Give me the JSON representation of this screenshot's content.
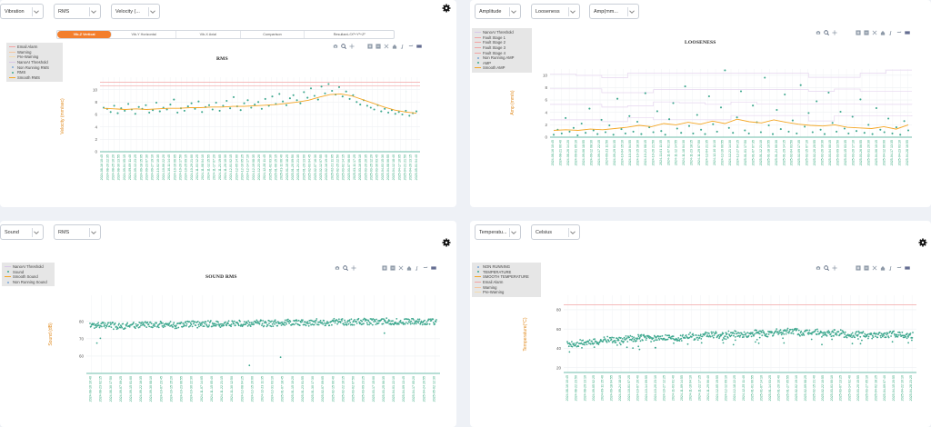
{
  "colors": {
    "accent": "#f37e2c",
    "teal": "#3fa88f",
    "orange_line": "#f5a623",
    "alarm_red": "#f2a3a3",
    "tick_green": "#39a97f"
  },
  "panels": [
    {
      "id": "vibration",
      "selects": [
        "Vibration",
        "RMS",
        "Velocity (..."
      ],
      "tabs": [
        {
          "label": "Vib-Z Vertical",
          "active": true
        },
        {
          "label": "Vib-Y Horizontal",
          "active": false
        },
        {
          "label": "Vib-X Axial",
          "active": false
        },
        {
          "label": "Comparison",
          "active": false
        },
        {
          "label": "Resultant-√X²+Y²+Z²",
          "active": false
        }
      ],
      "legend": [
        {
          "label": "Email Alarm",
          "marker": "line",
          "color": "#f2a3a3"
        },
        {
          "label": "Warning",
          "marker": "line",
          "color": "#f6c7a0"
        },
        {
          "label": "Pre-Warning",
          "marker": "line",
          "color": "#f4dcb0"
        },
        {
          "label": "NanoAI Threshold",
          "marker": "line",
          "color": "#d8c8e8"
        },
        {
          "label": "Non Running RMS",
          "marker": "dot",
          "color": "#7aa7d8"
        },
        {
          "label": "RMS",
          "marker": "dot",
          "color": "#3fa88f"
        },
        {
          "label": "Smooth RMS",
          "marker": "line",
          "color": "#f5a623"
        }
      ],
      "chart_data": {
        "type": "scatter",
        "title": "RMS",
        "ylabel": "Velocity (mm/sec)",
        "ylim": [
          0,
          12
        ],
        "yticks": [
          0,
          2,
          4,
          6,
          8,
          10
        ],
        "xticks": [
          "2024-08-16 10:45",
          "2024-08-20 22:35",
          "2024-08-25 10:20",
          "2024-08-30 13:55",
          "2024-09-04 05:15",
          "2024-09-09 11:40",
          "2024-09-13 23:25",
          "2024-09-18 15:05",
          "2024-09-23 07:30",
          "2024-09-27 19:10",
          "2024-10-02 10:35",
          "2024-10-06 22:20",
          "2024-10-11 14:45",
          "2024-10-16 06:05",
          "2024-10-20 17:50",
          "2024-10-25 09:15",
          "2024-10-29 21:00",
          "2024-11-03 12:25",
          "2024-11-08 04:10",
          "2024-11-12 15:55",
          "2024-11-17 07:20",
          "2024-11-21 19:05",
          "2024-11-26 10:30",
          "2024-12-01 02:15",
          "2024-12-05 14:00",
          "2024-12-10 05:25",
          "2024-12-14 17:10",
          "2024-12-19 08:35",
          "2024-12-23 20:20",
          "2024-12-28 11:45",
          "2025-01-02 03:30",
          "2025-01-06 15:15",
          "2025-01-11 06:40",
          "2025-01-15 18:25",
          "2025-01-20 09:50",
          "2025-01-24 21:35",
          "2025-01-29 13:00",
          "2025-02-03 04:45",
          "2025-02-07 16:30",
          "2025-02-12 07:55",
          "2025-02-16 19:40",
          "2025-02-21 11:05",
          "2025-02-25 22:50",
          "2025-03-02 14:15",
          "2025-03-07 06:00",
          "2025-03-11 17:25",
          "2025-03-16 09:10",
          "2025-03-20 20:35",
          "2025-03-25 12:20",
          "2025-03-30 03:45",
          "2025-04-03 15:30",
          "2025-04-08 06:55",
          "2025-04-12 18:40",
          "2025-04-17 10:05",
          "2025-04-21 21:50",
          "2025-04-26 13:15",
          "2025-05-01 04:40"
        ],
        "thresholds": [
          {
            "name": "Email Alarm",
            "value": 11.2
          },
          {
            "name": "Warning",
            "value": 10.6
          }
        ],
        "series": [
          {
            "name": "RMS",
            "kind": "scatter",
            "y": [
              7.1,
              6.9,
              6.4,
              7.4,
              6.2,
              7.0,
              6.6,
              7.7,
              6.8,
              6.1,
              7.2,
              6.9,
              7.5,
              6.3,
              6.7,
              7.9,
              6.5,
              7.1,
              6.8,
              7.6,
              8.4,
              6.3,
              7.0,
              6.6,
              7.3,
              7.8,
              6.9,
              8.1,
              6.4,
              7.2,
              7.5,
              6.8,
              7.9,
              6.6,
              7.4,
              8.2,
              7.0,
              8.8,
              7.3,
              6.7,
              7.8,
              8.3,
              7.1,
              7.6,
              8.0,
              6.9,
              8.5,
              7.4,
              8.9,
              7.7,
              9.3,
              8.1,
              7.5,
              8.6,
              9.1,
              8.3,
              7.8,
              9.6,
              8.7,
              10.2,
              9.0,
              8.4,
              10.5,
              9.4,
              10.9,
              9.8,
              9.2,
              10.4,
              8.9,
              9.7,
              8.5,
              9.1,
              8.0,
              7.6,
              8.3,
              7.4,
              7.1,
              6.8,
              7.5,
              6.5,
              6.9,
              6.3,
              6.7,
              6.1,
              6.4,
              6.0,
              6.6,
              5.8,
              6.2,
              6.5
            ]
          },
          {
            "name": "Smooth RMS",
            "kind": "line",
            "y": [
              7.0,
              6.9,
              6.8,
              6.9,
              6.8,
              6.9,
              7.0,
              7.0,
              7.1,
              7.1,
              7.2,
              7.2,
              7.3,
              7.3,
              7.4,
              7.5,
              7.6,
              7.8,
              8.0,
              8.3,
              8.8,
              9.2,
              9.3,
              9.0,
              8.4,
              7.8,
              7.2,
              6.7,
              6.4,
              6.2
            ]
          }
        ]
      }
    },
    {
      "id": "looseness",
      "selects": [
        "Amplitude",
        "Looseness",
        "Amp(mm..."
      ],
      "legend": [
        {
          "label": "NanoAI Threshold",
          "marker": "line",
          "color": "#d8c8e8"
        },
        {
          "label": "Fault Stage 1",
          "marker": "line",
          "color": "#f2a3a3"
        },
        {
          "label": "Fault Stage 2",
          "marker": "line",
          "color": "#f2a3a3"
        },
        {
          "label": "Fault Stage 3",
          "marker": "line",
          "color": "#f2a3a3"
        },
        {
          "label": "Fault Stage 4",
          "marker": "line",
          "color": "#f2a3a3"
        },
        {
          "label": "Non Running AMP",
          "marker": "dot",
          "color": "#7aa7d8"
        },
        {
          "label": "AMP",
          "marker": "dot",
          "color": "#3fa88f"
        },
        {
          "label": "Smooth AMP",
          "marker": "line",
          "color": "#f5a623"
        }
      ],
      "chart_data": {
        "type": "scatter",
        "title": "LOOSENESS",
        "ylabel": "Amp (mm/s)",
        "ylim": [
          0,
          11
        ],
        "yticks": [
          0,
          2,
          4,
          6,
          8,
          10
        ],
        "xticks": [
          "2024-08-16 10:45",
          "2024-08-21 00:40",
          "2024-08-26 14:20",
          "2024-09-01 05:10",
          "2024-09-06 18:55",
          "2024-09-12 08:30",
          "2024-09-17 22:15",
          "2024-09-23 11:50",
          "2024-09-29 01:35",
          "2024-10-04 15:10",
          "2024-10-10 04:55",
          "2024-10-15 18:30",
          "2024-10-21 08:15",
          "2024-10-26 21:50",
          "2024-11-01 11:35",
          "2024-11-07 01:10",
          "2024-11-12 14:55",
          "2024-11-18 04:30",
          "2024-11-23 18:15",
          "2024-11-29 07:50",
          "2024-12-04 21:35",
          "2024-12-10 11:10",
          "2024-12-16 00:55",
          "2024-12-21 14:30",
          "2024-12-27 04:15",
          "2025-01-01 17:50",
          "2025-01-07 07:35",
          "2025-01-12 21:10",
          "2025-01-18 10:55",
          "2025-01-24 00:30",
          "2025-01-29 14:15",
          "2025-02-04 03:50",
          "2025-02-09 17:35",
          "2025-02-15 07:10",
          "2025-02-20 20:55",
          "2025-02-26 10:30",
          "2025-03-04 00:15",
          "2025-03-09 13:50",
          "2025-03-15 03:35",
          "2025-03-20 17:10",
          "2025-03-26 06:55",
          "2025-03-31 20:30",
          "2025-04-06 10:15",
          "2025-04-12 00:00",
          "2025-04-17 13:35",
          "2025-04-23 03:10",
          "2025-04-28 16:55"
        ],
        "thresholds": [
          {
            "name": "Fault Stage 4",
            "value": 10.2
          },
          {
            "name": "Fault Stage 3",
            "value": 7.8
          },
          {
            "name": "Fault Stage 2",
            "value": 5.3
          },
          {
            "name": "Fault Stage 1",
            "value": 2.8
          }
        ],
        "series": [
          {
            "name": "AMP",
            "kind": "scatter",
            "y": [
              0.4,
              1.2,
              0.6,
              3.1,
              0.9,
              1.5,
              0.3,
              2.2,
              0.7,
              4.6,
              1.1,
              0.5,
              2.8,
              0.8,
              1.9,
              0.4,
              6.2,
              1.3,
              0.6,
              3.4,
              0.9,
              2.5,
              0.5,
              7.1,
              1.6,
              0.8,
              4.2,
              1.0,
              0.4,
              2.9,
              5.5,
              1.4,
              0.7,
              8.2,
              1.8,
              0.6,
              3.6,
              1.2,
              0.5,
              6.6,
              2.1,
              0.9,
              4.8,
              10.8,
              1.5,
              0.7,
              3.2,
              7.4,
              1.1,
              0.6,
              5.1,
              2.4,
              0.8,
              9.6,
              1.9,
              0.5,
              4.4,
              1.3,
              6.9,
              0.9,
              2.7,
              0.6,
              8.4,
              1.7,
              3.9,
              0.8,
              5.8,
              1.2,
              0.5,
              7.2,
              2.3,
              0.9,
              4.1,
              1.4,
              0.6,
              3.3,
              1.0,
              6.1,
              0.7,
              2.0,
              0.5,
              4.7,
              1.2,
              0.8,
              3.0,
              0.6,
              1.6,
              0.4,
              2.6,
              1.1
            ]
          },
          {
            "name": "Smooth AMP",
            "kind": "line",
            "y": [
              1.1,
              1.2,
              1.1,
              1.3,
              1.2,
              1.4,
              1.6,
              1.9,
              1.7,
              2.2,
              2.0,
              2.4,
              2.1,
              2.6,
              2.2,
              2.9,
              2.5,
              2.3,
              2.8,
              2.4,
              2.1,
              1.9,
              1.8,
              2.0,
              1.6,
              1.5,
              1.4,
              1.7,
              1.3,
              2.0
            ]
          }
        ]
      }
    },
    {
      "id": "sound",
      "selects": [
        "Sound",
        "RMS"
      ],
      "legend": [
        {
          "label": "NanoAI Threshold",
          "marker": "line",
          "color": "#d8c8e8"
        },
        {
          "label": "Sound",
          "marker": "dot",
          "color": "#3fa88f"
        },
        {
          "label": "Smooth Sound",
          "marker": "line",
          "color": "#f5a623"
        },
        {
          "label": "Non Running Sound",
          "marker": "dot",
          "color": "#7aa7d8"
        }
      ],
      "chart_data": {
        "type": "scatter",
        "title": "SOUND RMS",
        "ylabel": "Sound (dB)",
        "ylim": [
          50,
          95
        ],
        "yticks": [
          60,
          70,
          80
        ],
        "xticks": [
          "2024-08-16 10:40",
          "2024-08-23 02:15",
          "2024-08-30 17:50",
          "2024-09-07 09:25",
          "2024-09-15 01:00",
          "2024-09-22 16:35",
          "2024-09-30 08:10",
          "2024-10-07 23:45",
          "2024-10-15 15:20",
          "2024-10-23 06:55",
          "2024-10-30 22:30",
          "2024-11-07 14:05",
          "2024-11-15 05:40",
          "2024-11-22 21:15",
          "2024-11-30 12:50",
          "2024-12-08 04:25",
          "2024-12-15 20:00",
          "2024-12-23 11:35",
          "2024-12-31 03:10",
          "2025-01-07 18:45",
          "2025-01-15 10:20",
          "2025-01-23 01:55",
          "2025-01-30 17:30",
          "2025-02-07 09:05",
          "2025-02-15 00:40",
          "2025-02-22 16:15",
          "2025-03-02 07:50",
          "2025-03-09 23:25",
          "2025-03-17 15:00",
          "2025-03-25 06:35",
          "2025-04-01 22:10",
          "2025-04-09 13:45",
          "2025-04-17 05:20",
          "2025-04-24 20:55",
          "2025-05-02 12:30"
        ],
        "series": [
          {
            "name": "Sound",
            "kind": "band",
            "center": [
              77.5,
              77.8,
              77.2,
              77.6,
              78.0,
              77.9,
              78.2,
              77.7,
              78.4,
              78.1,
              78.6,
              78.3,
              78.9,
              78.5,
              79.0,
              78.7,
              79.2,
              79.4,
              79.1,
              79.6,
              79.3,
              79.8,
              79.5,
              79.9,
              79.7,
              80.1,
              79.8,
              80.0,
              79.6,
              79.9
            ],
            "spread": 1.8,
            "outliers": [
              [
                0.02,
                67.5
              ],
              [
                0.03,
                70.2
              ],
              [
                0.46,
                54.6
              ],
              [
                0.55,
                59.3
              ],
              [
                0.85,
                73.2
              ]
            ]
          }
        ]
      }
    },
    {
      "id": "temperature",
      "selects": [
        "Temperatu...",
        "Celsius"
      ],
      "legend": [
        {
          "label": "NON RUNNING",
          "marker": "dot",
          "color": "#7aa7d8"
        },
        {
          "label": "TEMPERATURE",
          "marker": "dot",
          "color": "#3fa88f"
        },
        {
          "label": "SMOOTH TEMPERATURE",
          "marker": "line",
          "color": "#f5a623"
        },
        {
          "label": "Email Alarm",
          "marker": "line",
          "color": "#f2a3a3"
        },
        {
          "label": "Warning",
          "marker": "line",
          "color": "#f6c7a0"
        },
        {
          "label": "Pre-Warning",
          "marker": "line",
          "color": "#f4dcb0"
        }
      ],
      "chart_data": {
        "type": "scatter",
        "title": "",
        "ylabel": "Temperature(°C)",
        "ylim": [
          15,
          95
        ],
        "yticks": [
          20,
          40,
          60,
          80
        ],
        "xticks": [
          "2024-08-16 10:45",
          "2024-08-22 23:50",
          "2024-08-29 13:10",
          "2024-09-05 02:25",
          "2024-09-11 15:40",
          "2024-09-18 04:55",
          "2024-09-24 18:10",
          "2024-10-01 07:25",
          "2024-10-07 20:40",
          "2024-10-14 09:55",
          "2024-10-20 23:10",
          "2024-10-27 12:25",
          "2024-11-03 01:40",
          "2024-11-09 14:55",
          "2024-11-16 04:10",
          "2024-11-22 17:25",
          "2024-11-29 06:40",
          "2024-12-05 19:55",
          "2024-12-12 09:10",
          "2024-12-18 22:25",
          "2024-12-25 11:40",
          "2025-01-01 00:55",
          "2025-01-07 14:10",
          "2025-01-14 03:25",
          "2025-01-20 16:40",
          "2025-01-27 05:55",
          "2025-02-02 19:10",
          "2025-02-09 08:25",
          "2025-02-15 21:40",
          "2025-02-22 10:55",
          "2025-03-01 00:10",
          "2025-03-07 13:25",
          "2025-03-14 02:40",
          "2025-03-20 15:55",
          "2025-03-27 05:10",
          "2025-04-02 18:25",
          "2025-04-09 07:40",
          "2025-04-15 20:55",
          "2025-04-22 10:10",
          "2025-04-28 23:25"
        ],
        "thresholds": [
          {
            "name": "Email Alarm",
            "value": 85
          }
        ],
        "series": [
          {
            "name": "TEMPERATURE",
            "kind": "band",
            "center": [
              44,
              46,
              47,
              49,
              48,
              50,
              51,
              50,
              52,
              51,
              53,
              52,
              54,
              53,
              55,
              54,
              56,
              55,
              57,
              58,
              56,
              57,
              55,
              56,
              54,
              55,
              53,
              54,
              55,
              54
            ],
            "spread": 3.2,
            "dips": 38
          }
        ]
      }
    }
  ]
}
